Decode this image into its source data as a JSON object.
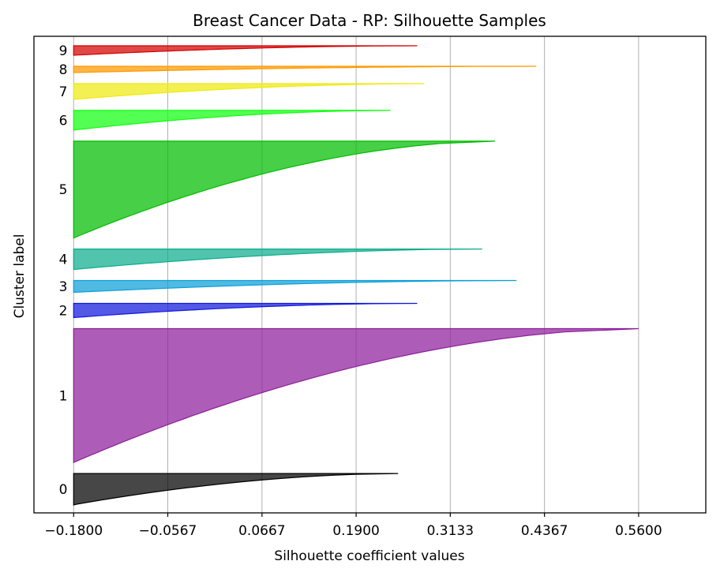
{
  "chart_data": {
    "type": "silhouette",
    "title": "Breast Cancer Data - RP: Silhouette Samples",
    "xlabel": "Silhouette coefficient values",
    "ylabel": "Cluster label",
    "xlim": [
      -0.232,
      0.648
    ],
    "xticks": [
      -0.18,
      -0.0567,
      0.0667,
      0.19,
      0.3133,
      0.4367,
      0.56
    ],
    "xtick_labels": [
      "−0.1800",
      "−0.0567",
      "0.0667",
      "0.1900",
      "0.3133",
      "0.4367",
      "0.5600"
    ],
    "grid": "vertical",
    "clusters": [
      {
        "label": "0",
        "color": "#000000",
        "size": 40,
        "max": 0.245,
        "min": -0.182
      },
      {
        "label": "1",
        "color": "#8e1f9b",
        "size": 170,
        "max": 0.56,
        "min": -0.18
      },
      {
        "label": "2",
        "color": "#1119dd",
        "size": 18,
        "max": 0.27,
        "min": -0.18
      },
      {
        "label": "3",
        "color": "#0d9fd8",
        "size": 15,
        "max": 0.4,
        "min": -0.18
      },
      {
        "label": "4",
        "color": "#0cad8c",
        "size": 26,
        "max": 0.355,
        "min": -0.18
      },
      {
        "label": "5",
        "color": "#00bd00",
        "size": 123,
        "max": 0.372,
        "min": -0.18
      },
      {
        "label": "6",
        "color": "#10ff10",
        "size": 25,
        "max": 0.235,
        "min": -0.18
      },
      {
        "label": "7",
        "color": "#eeea12",
        "size": 20,
        "max": 0.279,
        "min": -0.18
      },
      {
        "label": "8",
        "color": "#ff9900",
        "size": 8,
        "max": 0.426,
        "min": -0.18
      },
      {
        "label": "9",
        "color": "#d40000",
        "size": 12,
        "max": 0.27,
        "min": -0.18
      }
    ]
  }
}
